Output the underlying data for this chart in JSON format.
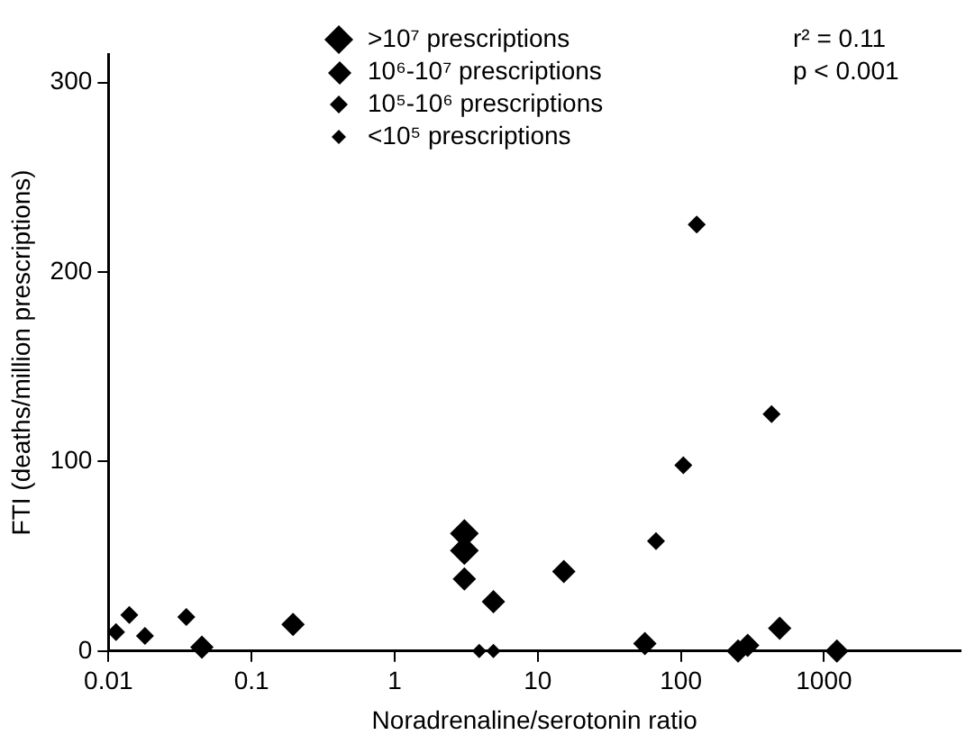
{
  "chart_data": {
    "type": "scatter",
    "xlabel": "Noradrenaline/serotonin ratio",
    "ylabel": "FTI (deaths/million prescriptions)",
    "log": "x",
    "xlim": [
      0.01,
      9000
    ],
    "xticks": [
      0.01,
      0.1,
      1,
      10,
      100,
      1000
    ],
    "ylim": [
      0,
      315
    ],
    "yticks": [
      0,
      100,
      200,
      300
    ],
    "grid": false,
    "legend": "top",
    "marker": "diamond",
    "annotations": [
      "r² = 0.11",
      "p < 0.001"
    ],
    "series": [
      {
        "name": ">10⁷ prescriptions",
        "color": "#000000",
        "x": [
          3.07,
          3.07
        ],
        "values": [
          62,
          53
        ]
      },
      {
        "name": "10⁶-10⁷ prescriptions",
        "color": "#000000",
        "x": [
          0.045,
          0.195,
          3.07,
          4.9,
          15.2,
          56,
          251,
          293,
          490,
          1230
        ],
        "values": [
          2,
          14,
          38,
          26,
          42,
          4,
          0,
          3,
          12,
          0
        ]
      },
      {
        "name": "10⁵-10⁶ prescriptions",
        "color": "#000000",
        "x": [
          0.0113,
          0.014,
          0.018,
          0.035,
          67,
          104,
          129,
          430
        ],
        "values": [
          10,
          19,
          8,
          18,
          58,
          98,
          225,
          125
        ]
      },
      {
        "name": "<10⁵ prescriptions",
        "color": "#000000",
        "x": [
          3.9,
          4.9
        ],
        "values": [
          0,
          0
        ]
      }
    ]
  }
}
